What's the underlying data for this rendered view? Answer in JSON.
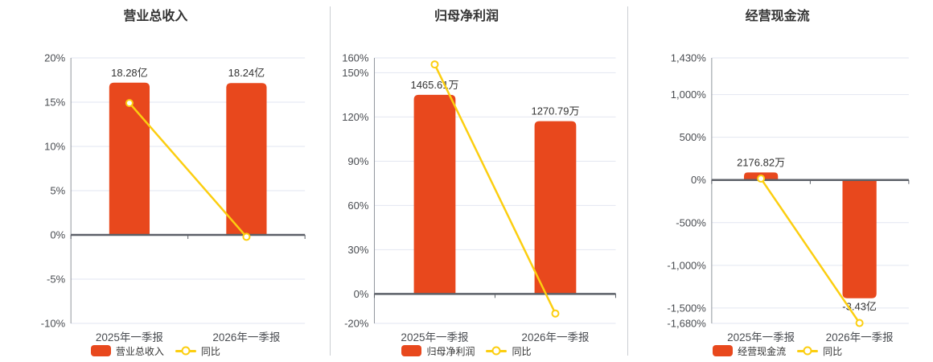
{
  "page": {
    "background": "#ffffff"
  },
  "colors": {
    "bar": "#e8481d",
    "line": "#fcce10",
    "grid": "#e2e6f1",
    "zero_line": "#5c6068",
    "axis_line": "#90959c",
    "divider": "#cbced3",
    "tick_text": "#4a4d52",
    "title_text": "#333333",
    "value_label_text": "#333333",
    "legend_text": "#333333"
  },
  "chart_data": [
    {
      "type": "bar+line",
      "title": "营业总收入",
      "categories": [
        "2025年一季报",
        "2026年一季报"
      ],
      "bar_series": {
        "name": "营业总收入",
        "value_labels": [
          "18.28亿",
          "18.24亿"
        ],
        "plotted_axis_values": [
          17.2,
          17.16
        ]
      },
      "line_series": {
        "name": "同比",
        "values_pct": [
          14.9,
          -0.22
        ]
      },
      "y_ticks": [
        {
          "label": "20%",
          "value": 20
        },
        {
          "label": "15%",
          "value": 15
        },
        {
          "label": "10%",
          "value": 10
        },
        {
          "label": "5%",
          "value": 5
        },
        {
          "label": "0%",
          "value": 0
        },
        {
          "label": "-5%",
          "value": -5
        },
        {
          "label": "-10%",
          "value": -10
        }
      ],
      "ylim": [
        -10,
        20
      ],
      "grid": true,
      "legend_position": "bottom"
    },
    {
      "type": "bar+line",
      "title": "归母净利润",
      "categories": [
        "2025年一季报",
        "2026年一季报"
      ],
      "bar_series": {
        "name": "归母净利润",
        "value_labels": [
          "1465.61万",
          "1270.79万"
        ],
        "plotted_axis_values": [
          135,
          117.1
        ]
      },
      "line_series": {
        "name": "同比",
        "values_pct": [
          155.6,
          -13.29
        ]
      },
      "y_ticks": [
        {
          "label": "160%",
          "value": 160
        },
        {
          "label": "150%",
          "value": 150
        },
        {
          "label": "120%",
          "value": 120
        },
        {
          "label": "90%",
          "value": 90
        },
        {
          "label": "60%",
          "value": 60
        },
        {
          "label": "30%",
          "value": 30
        },
        {
          "label": "0%",
          "value": 0
        },
        {
          "label": "-20%",
          "value": -20
        }
      ],
      "ylim": [
        -20,
        160
      ],
      "grid": true,
      "legend_position": "bottom"
    },
    {
      "type": "bar+line",
      "title": "经营现金流",
      "categories": [
        "2025年一季报",
        "2026年一季报"
      ],
      "bar_series": {
        "name": "经营现金流",
        "value_labels": [
          "2176.82万",
          "-3.43亿"
        ],
        "plotted_axis_values": [
          88,
          -1385
        ]
      },
      "line_series": {
        "name": "同比",
        "values_pct": [
          16,
          -1675.7
        ]
      },
      "y_ticks": [
        {
          "label": "1,430%",
          "value": 1430
        },
        {
          "label": "1,000%",
          "value": 1000
        },
        {
          "label": "500%",
          "value": 500
        },
        {
          "label": "0%",
          "value": 0
        },
        {
          "label": "-500%",
          "value": -500
        },
        {
          "label": "-1,000%",
          "value": -1000
        },
        {
          "label": "-1,500%",
          "value": -1500
        },
        {
          "label": "-1,680%",
          "value": -1680
        }
      ],
      "ylim": [
        -1680,
        1430
      ],
      "grid": true,
      "legend_position": "bottom"
    }
  ]
}
